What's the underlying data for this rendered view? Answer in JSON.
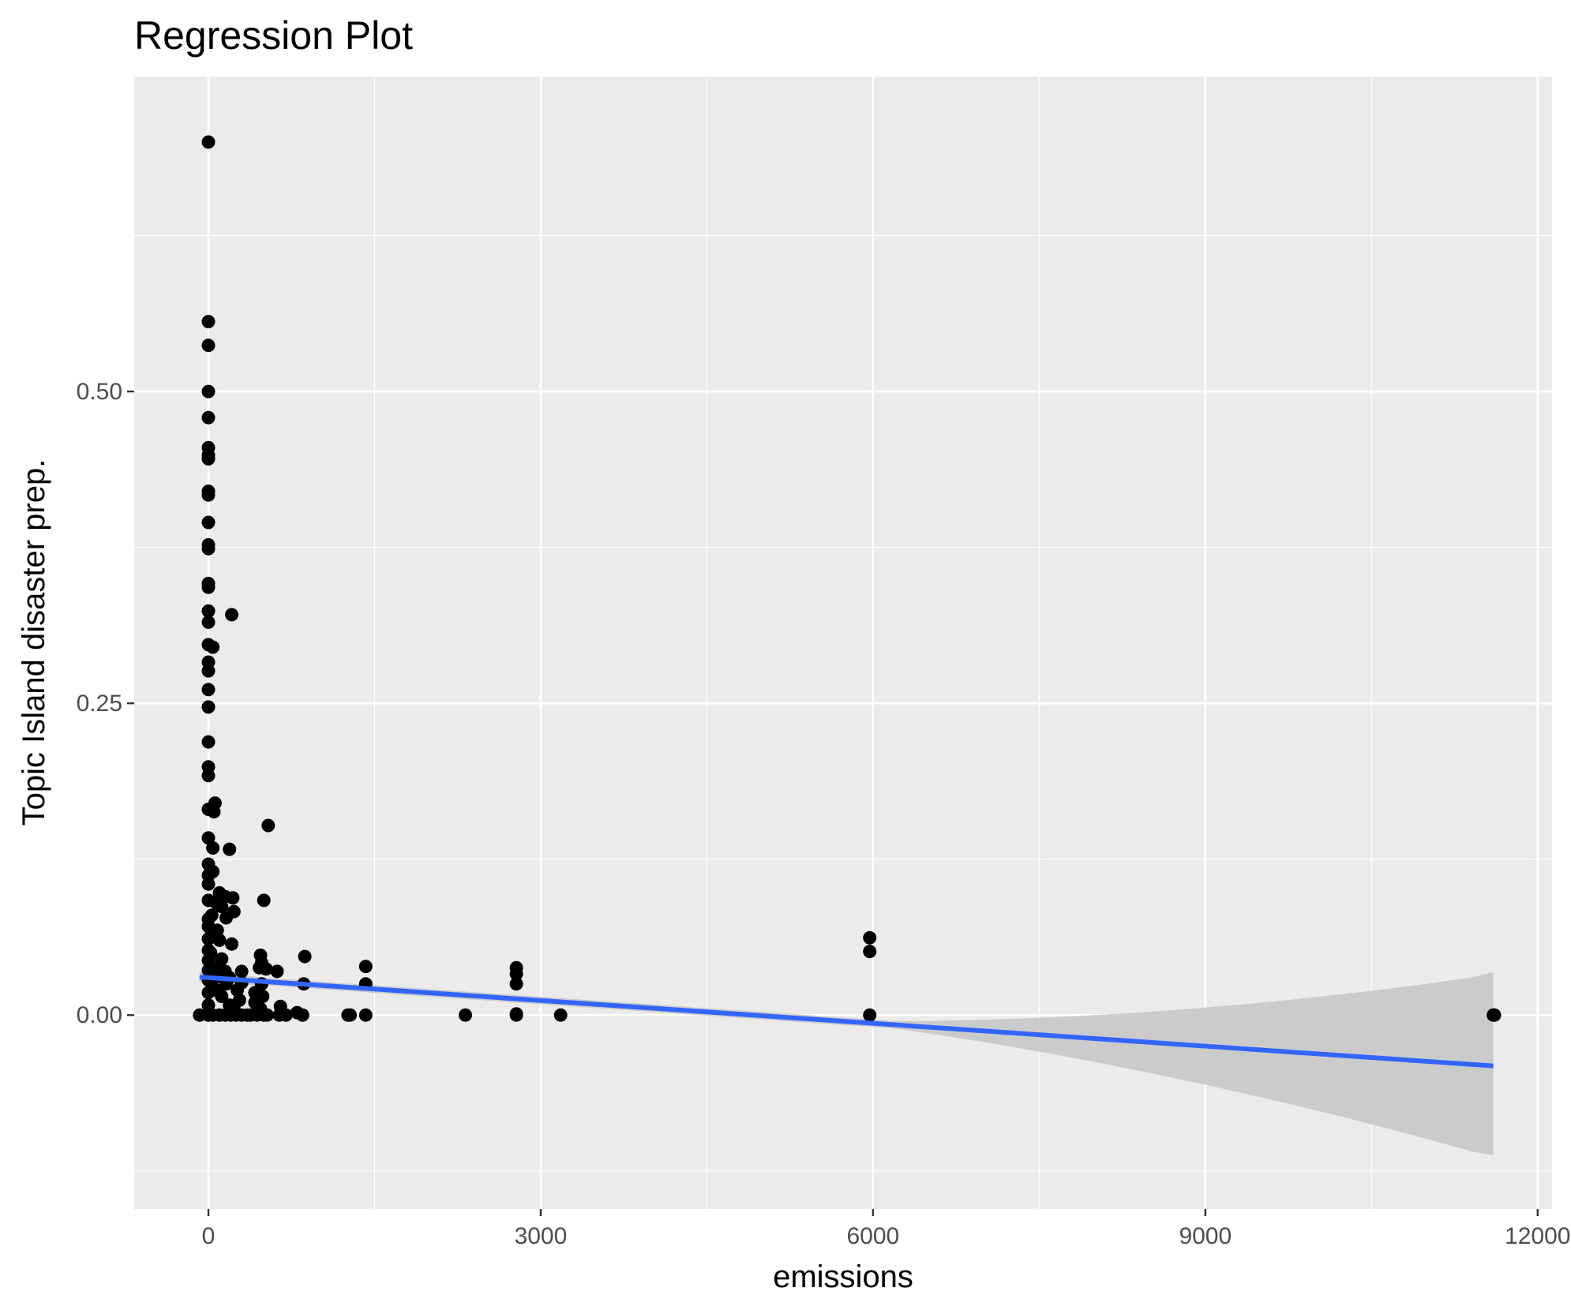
{
  "chart_data": {
    "type": "scatter",
    "title": "Regression Plot",
    "xlabel": "emissions",
    "ylabel": "Topic Island disaster prep.",
    "xlim": [
      -670,
      12130
    ],
    "ylim": [
      -0.1555,
      0.7525
    ],
    "x_ticks": [
      0,
      3000,
      6000,
      9000,
      12000
    ],
    "x_tick_labels": [
      "0",
      "3000",
      "6000",
      "9000",
      "12000"
    ],
    "y_ticks": [
      0,
      0.25,
      0.5
    ],
    "y_tick_labels": [
      "0.00",
      "0.25",
      "0.50"
    ],
    "grid": true,
    "legend": "none",
    "colors": {
      "panel": "#ebebeb",
      "grid": "#ffffff",
      "points": "#000000",
      "regression_line": "#3366ff",
      "confidence_band": "#c8c8c8"
    },
    "regression": {
      "x_range": [
        -80,
        11600
      ],
      "intercept": 0.03,
      "slope": -6.1e-06,
      "ci_lower_end": -0.1125,
      "ci_upper_end": 0.0345
    },
    "points": [
      [
        0,
        0.7
      ],
      [
        0,
        0.556
      ],
      [
        0,
        0.537
      ],
      [
        0,
        0.5
      ],
      [
        0,
        0.479
      ],
      [
        0,
        0.455
      ],
      [
        0,
        0.449
      ],
      [
        0,
        0.446
      ],
      [
        0,
        0.42
      ],
      [
        0,
        0.417
      ],
      [
        0,
        0.395
      ],
      [
        0,
        0.377
      ],
      [
        0,
        0.374
      ],
      [
        0,
        0.346
      ],
      [
        0,
        0.343
      ],
      [
        0,
        0.324
      ],
      [
        0,
        0.315
      ],
      [
        0,
        0.297
      ],
      [
        0,
        0.283
      ],
      [
        0,
        0.276
      ],
      [
        0,
        0.261
      ],
      [
        0,
        0.247
      ],
      [
        0,
        0.219
      ],
      [
        0,
        0.199
      ],
      [
        0,
        0.192
      ],
      [
        0,
        0.165
      ],
      [
        0,
        0.142
      ],
      [
        0,
        0.121
      ],
      [
        0,
        0.112
      ],
      [
        0,
        0.105
      ],
      [
        0,
        0.092
      ],
      [
        0,
        0.077
      ],
      [
        0,
        0.071
      ],
      [
        0,
        0.061
      ],
      [
        0,
        0.052
      ],
      [
        0,
        0.044
      ],
      [
        0,
        0.036
      ],
      [
        0,
        0.028
      ],
      [
        0,
        0.018
      ],
      [
        0,
        0.008
      ],
      [
        0,
        0.0
      ],
      [
        -80,
        0.0
      ],
      [
        20,
        0.05
      ],
      [
        30,
        0.08
      ],
      [
        40,
        0.0
      ],
      [
        210,
        0.321
      ],
      [
        40,
        0.295
      ],
      [
        60,
        0.17
      ],
      [
        50,
        0.163
      ],
      [
        190,
        0.133
      ],
      [
        40,
        0.134
      ],
      [
        40,
        0.115
      ],
      [
        100,
        0.098
      ],
      [
        150,
        0.095
      ],
      [
        220,
        0.094
      ],
      [
        230,
        0.083
      ],
      [
        70,
        0.09
      ],
      [
        120,
        0.087
      ],
      [
        160,
        0.078
      ],
      [
        80,
        0.068
      ],
      [
        210,
        0.057
      ],
      [
        100,
        0.06
      ],
      [
        30,
        0.065
      ],
      [
        120,
        0.045
      ],
      [
        150,
        0.035
      ],
      [
        190,
        0.03
      ],
      [
        80,
        0.038
      ],
      [
        70,
        0.02
      ],
      [
        120,
        0.015
      ],
      [
        190,
        0.008
      ],
      [
        230,
        0.005
      ],
      [
        280,
        0.012
      ],
      [
        300,
        0.035
      ],
      [
        300,
        0.026
      ],
      [
        260,
        0.02
      ],
      [
        160,
        0.025
      ],
      [
        60,
        0.03
      ],
      [
        100,
        0.0
      ],
      [
        150,
        0.0
      ],
      [
        200,
        0.0
      ],
      [
        250,
        0.0
      ],
      [
        300,
        0.0
      ],
      [
        350,
        0.0
      ],
      [
        380,
        0.0
      ],
      [
        420,
        0.01
      ],
      [
        440,
        0.0
      ],
      [
        470,
        0.005
      ],
      [
        490,
        0.015
      ],
      [
        500,
        0.0
      ],
      [
        530,
        0.0
      ],
      [
        480,
        0.025
      ],
      [
        470,
        0.048
      ],
      [
        480,
        0.042
      ],
      [
        520,
        0.037
      ],
      [
        500,
        0.092
      ],
      [
        540,
        0.152
      ],
      [
        420,
        0.018
      ],
      [
        460,
        0.038
      ],
      [
        620,
        0.035
      ],
      [
        640,
        0.0
      ],
      [
        650,
        0.007
      ],
      [
        700,
        0.0
      ],
      [
        800,
        0.002
      ],
      [
        850,
        0.0
      ],
      [
        870,
        0.047
      ],
      [
        860,
        0.025
      ],
      [
        1260,
        0.0
      ],
      [
        1280,
        0.0
      ],
      [
        1420,
        0.039
      ],
      [
        1420,
        0.025
      ],
      [
        1420,
        0.0
      ],
      [
        2320,
        0.0
      ],
      [
        2780,
        0.038
      ],
      [
        2780,
        0.033
      ],
      [
        2780,
        0.025
      ],
      [
        2780,
        0.001
      ],
      [
        2780,
        0.0
      ],
      [
        3180,
        0.0
      ],
      [
        5970,
        0.062
      ],
      [
        5970,
        0.051
      ],
      [
        5970,
        0.0
      ],
      [
        11600,
        0.0
      ],
      [
        11610,
        0.0
      ]
    ]
  }
}
